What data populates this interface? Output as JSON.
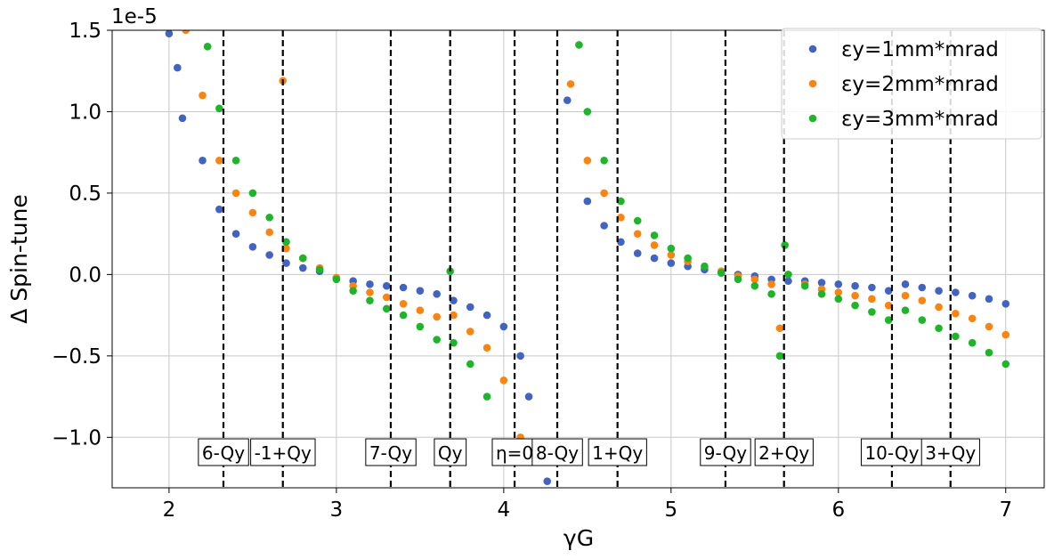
{
  "chart_data": {
    "type": "scatter",
    "y_label": "Δ Spin-tune",
    "x_label": "γG",
    "y_offset_text": "1e-5",
    "xlim": [
      1.66,
      7.23
    ],
    "ylim": [
      -1.31,
      1.5
    ],
    "xticks": [
      2,
      3,
      4,
      5,
      6,
      7
    ],
    "yticks": [
      1.5,
      {
        "value": 1.0,
        "label": "1.0"
      },
      0.5,
      {
        "value": 0.0,
        "label": "0.0"
      },
      {
        "value": -0.5,
        "label": "−0.5"
      },
      {
        "value": -1.0,
        "label": "−1.0"
      }
    ],
    "grid": true,
    "legend": "upper right",
    "annotations": [
      {
        "x": 2.325,
        "label": "6-Qy"
      },
      {
        "x": 2.68,
        "label": "-1+Qy"
      },
      {
        "x": 3.325,
        "label": "7-Qy"
      },
      {
        "x": 3.68,
        "label": "Qy"
      },
      {
        "x": 4.065,
        "label": "η=0"
      },
      {
        "x": 4.32,
        "label": "8-Qy"
      },
      {
        "x": 4.68,
        "label": "1+Qy"
      },
      {
        "x": 5.325,
        "label": "9-Qy"
      },
      {
        "x": 5.675,
        "label": "2+Qy"
      },
      {
        "x": 6.32,
        "label": "10-Qy"
      },
      {
        "x": 6.67,
        "label": "3+Qy"
      }
    ],
    "series": [
      {
        "name": "εy=1mm*mrad",
        "color": "#4363c0",
        "x": [
          2.0,
          2.05,
          2.08,
          2.2,
          2.3,
          2.4,
          2.5,
          2.6,
          2.7,
          2.8,
          2.9,
          3.0,
          3.1,
          3.2,
          3.3,
          3.4,
          3.5,
          3.6,
          3.7,
          3.8,
          3.9,
          4.0,
          4.1,
          4.15,
          4.26,
          4.38,
          4.5,
          4.6,
          4.7,
          4.8,
          4.9,
          5.0,
          5.1,
          5.2,
          5.3,
          5.4,
          5.5,
          5.6,
          5.7,
          5.8,
          5.9,
          6.0,
          6.1,
          6.2,
          6.3,
          6.4,
          6.5,
          6.6,
          6.7,
          6.8,
          6.9,
          7.0
        ],
        "values": [
          1.48,
          1.27,
          0.96,
          0.7,
          0.4,
          0.25,
          0.17,
          0.12,
          0.07,
          0.04,
          0.02,
          -0.02,
          -0.04,
          -0.06,
          -0.07,
          -0.08,
          -0.1,
          -0.12,
          -0.16,
          -0.2,
          -0.25,
          -0.32,
          -0.5,
          -0.75,
          -1.27,
          1.07,
          0.45,
          0.3,
          0.2,
          0.13,
          0.1,
          0.07,
          0.05,
          0.03,
          0.01,
          0.0,
          -0.01,
          -0.03,
          -0.04,
          -0.04,
          -0.05,
          -0.06,
          -0.07,
          -0.08,
          -0.1,
          -0.06,
          -0.08,
          -0.1,
          -0.11,
          -0.13,
          -0.15,
          -0.18
        ]
      },
      {
        "name": "εy=2mm*mrad",
        "color": "#f98510",
        "x": [
          2.1,
          2.2,
          2.3,
          2.4,
          2.5,
          2.6,
          2.68,
          2.7,
          2.8,
          2.9,
          3.0,
          3.1,
          3.2,
          3.3,
          3.4,
          3.5,
          3.6,
          3.7,
          3.8,
          3.9,
          4.0,
          4.1,
          4.4,
          4.5,
          4.6,
          4.7,
          4.8,
          4.9,
          5.0,
          5.1,
          5.2,
          5.3,
          5.4,
          5.5,
          5.6,
          5.65,
          5.7,
          5.8,
          5.9,
          6.0,
          6.1,
          6.2,
          6.3,
          6.4,
          6.5,
          6.6,
          6.7,
          6.8,
          6.9,
          7.0
        ],
        "values": [
          1.5,
          1.1,
          0.7,
          0.5,
          0.38,
          0.26,
          1.19,
          0.16,
          0.1,
          0.04,
          -0.02,
          -0.07,
          -0.11,
          -0.14,
          -0.18,
          -0.22,
          -0.26,
          -0.25,
          -0.35,
          -0.45,
          -0.65,
          -1.0,
          1.17,
          0.7,
          0.5,
          0.35,
          0.25,
          0.18,
          0.12,
          0.08,
          0.05,
          0.02,
          -0.01,
          -0.03,
          -0.06,
          -0.33,
          0.0,
          -0.06,
          -0.09,
          -0.11,
          -0.13,
          -0.15,
          -0.19,
          -0.13,
          -0.16,
          -0.2,
          -0.24,
          -0.27,
          -0.32,
          -0.37
        ]
      },
      {
        "name": "εy=3mm*mrad",
        "color": "#1fb52a",
        "x": [
          2.23,
          2.3,
          2.4,
          2.5,
          2.6,
          2.7,
          2.8,
          2.9,
          3.0,
          3.1,
          3.2,
          3.3,
          3.4,
          3.5,
          3.6,
          3.68,
          3.7,
          3.8,
          3.9,
          4.0,
          4.45,
          4.5,
          4.6,
          4.7,
          4.8,
          4.9,
          5.0,
          5.1,
          5.2,
          5.3,
          5.4,
          5.5,
          5.6,
          5.65,
          5.68,
          5.7,
          5.8,
          5.9,
          6.0,
          6.1,
          6.2,
          6.3,
          6.4,
          6.5,
          6.6,
          6.7,
          6.8,
          6.9,
          7.0
        ],
        "values": [
          1.4,
          1.02,
          0.7,
          0.5,
          0.35,
          0.2,
          0.1,
          0.03,
          -0.03,
          -0.1,
          -0.16,
          -0.21,
          -0.25,
          -0.32,
          -0.4,
          0.02,
          -0.42,
          -0.55,
          -0.75,
          -1.05,
          1.41,
          1.0,
          0.7,
          0.45,
          0.33,
          0.24,
          0.16,
          0.1,
          0.05,
          0.01,
          -0.03,
          -0.07,
          -0.12,
          -0.5,
          0.18,
          0.0,
          -0.07,
          -0.12,
          -0.15,
          -0.19,
          -0.23,
          -0.28,
          -0.22,
          -0.28,
          -0.33,
          -0.38,
          -0.42,
          -0.48,
          -0.55
        ]
      }
    ]
  }
}
